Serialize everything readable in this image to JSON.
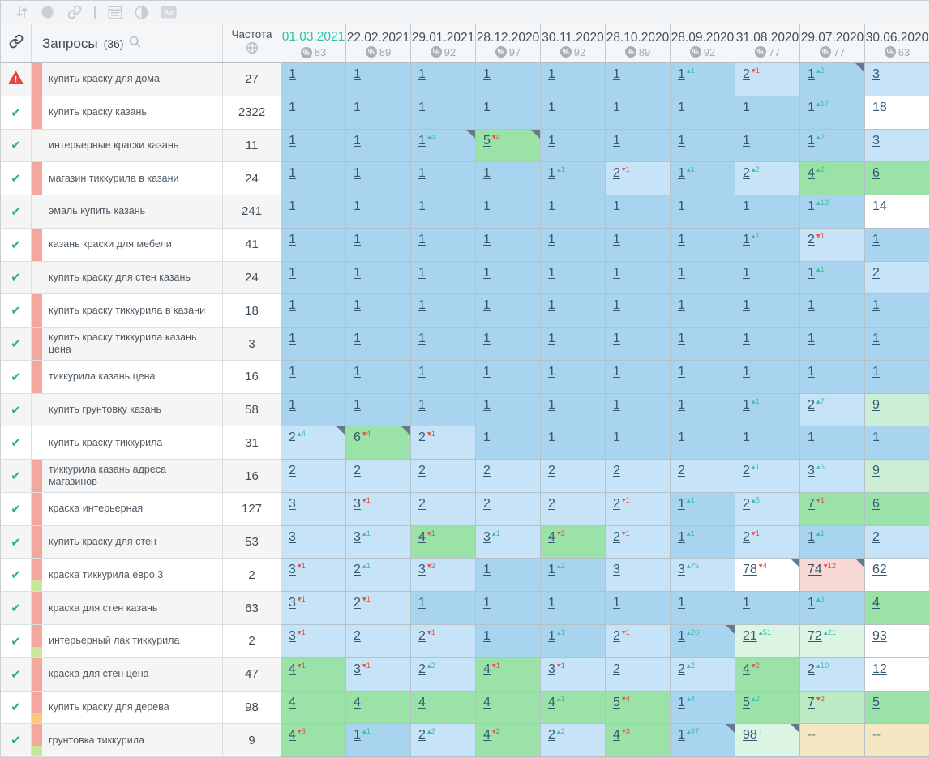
{
  "toolbar": {
    "icons": [
      "sort-icon",
      "group-circle-icon",
      "link-icon",
      "divider",
      "snippet-window-icon",
      "contrast-icon",
      "case-aa-icon"
    ]
  },
  "header": {
    "link_column_icon": "chain-link-icon",
    "queries_label": "Запросы",
    "queries_count": "(36)",
    "search_icon": "search-icon",
    "frequency_label": "Частота",
    "frequency_icon": "globe-icon"
  },
  "colors": {
    "accent_active_date": "#2dbfa7",
    "pos_top1_bg": "#a9d4ef",
    "pos_2_3_bg": "#c6e3f7",
    "pos_4_10_bg": "#9ae2a8",
    "improved_bg": "#dcf4e4",
    "dropped_bg": "#f9d9d6",
    "not_ranked_bg": "#f4e7c2",
    "up_change": "#3dbfa0",
    "down_change": "#e0544a"
  },
  "columns": [
    {
      "date": "01.03.2021",
      "percent": "83",
      "active": true
    },
    {
      "date": "22.02.2021",
      "percent": "89",
      "active": false
    },
    {
      "date": "29.01.2021",
      "percent": "92",
      "active": false
    },
    {
      "date": "28.12.2020",
      "percent": "97",
      "active": false
    },
    {
      "date": "30.11.2020",
      "percent": "92",
      "active": false
    },
    {
      "date": "28.10.2020",
      "percent": "89",
      "active": false
    },
    {
      "date": "28.09.2020",
      "percent": "92",
      "active": false
    },
    {
      "date": "31.08.2020",
      "percent": "77",
      "active": false
    },
    {
      "date": "29.07.2020",
      "percent": "77",
      "active": false
    },
    {
      "date": "30.06.2020",
      "percent": "63",
      "active": false
    }
  ],
  "rows": [
    {
      "status": "warning",
      "tags": [
        "salmon"
      ],
      "query": "купить краску для дома",
      "frequency": "27",
      "cells": [
        [
          "1",
          "b1"
        ],
        [
          "1",
          "b1"
        ],
        [
          "1",
          "b1"
        ],
        [
          "1",
          "b1"
        ],
        [
          "1",
          "b1"
        ],
        [
          "1",
          "b1"
        ],
        [
          "1",
          "b1",
          "u",
          "1"
        ],
        [
          "2",
          "b2",
          "d",
          "1"
        ],
        [
          "1",
          "b1",
          "u",
          "2",
          1
        ],
        [
          "3",
          "b2"
        ]
      ]
    },
    {
      "status": "ok",
      "tags": [
        "salmon"
      ],
      "query": "купить краску казань",
      "frequency": "2322",
      "cells": [
        [
          "1",
          "b1"
        ],
        [
          "1",
          "b1"
        ],
        [
          "1",
          "b1"
        ],
        [
          "1",
          "b1"
        ],
        [
          "1",
          "b1"
        ],
        [
          "1",
          "b1"
        ],
        [
          "1",
          "b1"
        ],
        [
          "1",
          "b1"
        ],
        [
          "1",
          "b1",
          "u",
          "17"
        ],
        [
          "18",
          "w"
        ]
      ]
    },
    {
      "status": "ok",
      "tags": [],
      "query": "интерьерные краски казань",
      "frequency": "11",
      "cells": [
        [
          "1",
          "b1"
        ],
        [
          "1",
          "b1"
        ],
        [
          "1",
          "b1",
          "u",
          "4",
          1
        ],
        [
          "5",
          "g4",
          "d",
          "4",
          1
        ],
        [
          "1",
          "b1"
        ],
        [
          "1",
          "b1"
        ],
        [
          "1",
          "b1"
        ],
        [
          "1",
          "b1"
        ],
        [
          "1",
          "b1",
          "u",
          "2"
        ],
        [
          "3",
          "b2"
        ]
      ]
    },
    {
      "status": "ok",
      "tags": [
        "salmon"
      ],
      "query": "магазин тиккурила в казани",
      "frequency": "24",
      "cells": [
        [
          "1",
          "b1"
        ],
        [
          "1",
          "b1"
        ],
        [
          "1",
          "b1"
        ],
        [
          "1",
          "b1"
        ],
        [
          "1",
          "b1",
          "u",
          "1"
        ],
        [
          "2",
          "b2",
          "d",
          "1"
        ],
        [
          "1",
          "b1",
          "u",
          "1"
        ],
        [
          "2",
          "b2",
          "u",
          "2"
        ],
        [
          "4",
          "g4",
          "u",
          "2"
        ],
        [
          "6",
          "g4"
        ]
      ]
    },
    {
      "status": "ok",
      "tags": [],
      "query": "эмаль купить казань",
      "frequency": "241",
      "cells": [
        [
          "1",
          "b1"
        ],
        [
          "1",
          "b1"
        ],
        [
          "1",
          "b1"
        ],
        [
          "1",
          "b1"
        ],
        [
          "1",
          "b1"
        ],
        [
          "1",
          "b1"
        ],
        [
          "1",
          "b1"
        ],
        [
          "1",
          "b1"
        ],
        [
          "1",
          "b1",
          "u",
          "13"
        ],
        [
          "14",
          "w"
        ]
      ]
    },
    {
      "status": "ok",
      "tags": [
        "salmon"
      ],
      "query": "казань краски для мебели",
      "frequency": "41",
      "cells": [
        [
          "1",
          "b1"
        ],
        [
          "1",
          "b1"
        ],
        [
          "1",
          "b1"
        ],
        [
          "1",
          "b1"
        ],
        [
          "1",
          "b1"
        ],
        [
          "1",
          "b1"
        ],
        [
          "1",
          "b1"
        ],
        [
          "1",
          "b1",
          "u",
          "1"
        ],
        [
          "2",
          "b2",
          "d",
          "1"
        ],
        [
          "1",
          "b1"
        ]
      ]
    },
    {
      "status": "ok",
      "tags": [],
      "query": "купить краску для стен казань",
      "frequency": "24",
      "cells": [
        [
          "1",
          "b1"
        ],
        [
          "1",
          "b1"
        ],
        [
          "1",
          "b1"
        ],
        [
          "1",
          "b1"
        ],
        [
          "1",
          "b1"
        ],
        [
          "1",
          "b1"
        ],
        [
          "1",
          "b1"
        ],
        [
          "1",
          "b1"
        ],
        [
          "1",
          "b1",
          "u",
          "1"
        ],
        [
          "2",
          "b2"
        ]
      ]
    },
    {
      "status": "ok",
      "tags": [
        "salmon"
      ],
      "query": "купить краску тиккурила в казани",
      "frequency": "18",
      "cells": [
        [
          "1",
          "b1"
        ],
        [
          "1",
          "b1"
        ],
        [
          "1",
          "b1"
        ],
        [
          "1",
          "b1"
        ],
        [
          "1",
          "b1"
        ],
        [
          "1",
          "b1"
        ],
        [
          "1",
          "b1"
        ],
        [
          "1",
          "b1"
        ],
        [
          "1",
          "b1"
        ],
        [
          "1",
          "b1"
        ]
      ]
    },
    {
      "status": "ok",
      "tags": [
        "salmon"
      ],
      "query": "купить краску тиккурила казань цена",
      "frequency": "3",
      "cells": [
        [
          "1",
          "b1"
        ],
        [
          "1",
          "b1"
        ],
        [
          "1",
          "b1"
        ],
        [
          "1",
          "b1"
        ],
        [
          "1",
          "b1"
        ],
        [
          "1",
          "b1"
        ],
        [
          "1",
          "b1"
        ],
        [
          "1",
          "b1"
        ],
        [
          "1",
          "b1"
        ],
        [
          "1",
          "b1"
        ]
      ]
    },
    {
      "status": "ok",
      "tags": [
        "salmon"
      ],
      "query": "тиккурила казань цена",
      "frequency": "16",
      "cells": [
        [
          "1",
          "b1"
        ],
        [
          "1",
          "b1"
        ],
        [
          "1",
          "b1"
        ],
        [
          "1",
          "b1"
        ],
        [
          "1",
          "b1"
        ],
        [
          "1",
          "b1"
        ],
        [
          "1",
          "b1"
        ],
        [
          "1",
          "b1"
        ],
        [
          "1",
          "b1"
        ],
        [
          "1",
          "b1"
        ]
      ]
    },
    {
      "status": "ok",
      "tags": [],
      "query": "купить грунтовку казань",
      "frequency": "58",
      "cells": [
        [
          "1",
          "b1"
        ],
        [
          "1",
          "b1"
        ],
        [
          "1",
          "b1"
        ],
        [
          "1",
          "b1"
        ],
        [
          "1",
          "b1"
        ],
        [
          "1",
          "b1"
        ],
        [
          "1",
          "b1"
        ],
        [
          "1",
          "b1",
          "u",
          "1"
        ],
        [
          "2",
          "b2",
          "u",
          "7"
        ],
        [
          "9",
          "g9"
        ]
      ]
    },
    {
      "status": "ok",
      "tags": [],
      "query": "купить краску тиккурила",
      "frequency": "31",
      "cells": [
        [
          "2",
          "b2",
          "u",
          "4",
          1
        ],
        [
          "6",
          "g4",
          "d",
          "4",
          1
        ],
        [
          "2",
          "b2",
          "d",
          "1"
        ],
        [
          "1",
          "b1"
        ],
        [
          "1",
          "b1"
        ],
        [
          "1",
          "b1"
        ],
        [
          "1",
          "b1"
        ],
        [
          "1",
          "b1"
        ],
        [
          "1",
          "b1"
        ],
        [
          "1",
          "b1"
        ]
      ]
    },
    {
      "status": "ok",
      "tags": [
        "salmon"
      ],
      "query": "тиккурила казань адреса магазинов",
      "frequency": "16",
      "cells": [
        [
          "2",
          "b2"
        ],
        [
          "2",
          "b2"
        ],
        [
          "2",
          "b2"
        ],
        [
          "2",
          "b2"
        ],
        [
          "2",
          "b2"
        ],
        [
          "2",
          "b2"
        ],
        [
          "2",
          "b2"
        ],
        [
          "2",
          "b2",
          "u",
          "1"
        ],
        [
          "3",
          "b2",
          "u",
          "6"
        ],
        [
          "9",
          "g9"
        ]
      ]
    },
    {
      "status": "ok",
      "tags": [
        "salmon"
      ],
      "query": "краска интерьерная",
      "frequency": "127",
      "cells": [
        [
          "3",
          "b2"
        ],
        [
          "3",
          "b2",
          "d",
          "1"
        ],
        [
          "2",
          "b2"
        ],
        [
          "2",
          "b2"
        ],
        [
          "2",
          "b2"
        ],
        [
          "2",
          "b2",
          "d",
          "1"
        ],
        [
          "1",
          "b1",
          "u",
          "1"
        ],
        [
          "2",
          "b2",
          "u",
          "5"
        ],
        [
          "7",
          "g4",
          "d",
          "1"
        ],
        [
          "6",
          "g4"
        ]
      ]
    },
    {
      "status": "ok",
      "tags": [
        "salmon"
      ],
      "query": "купить краску для стен",
      "frequency": "53",
      "cells": [
        [
          "3",
          "b2"
        ],
        [
          "3",
          "b2",
          "u",
          "1"
        ],
        [
          "4",
          "g4",
          "d",
          "1"
        ],
        [
          "3",
          "b2",
          "u",
          "1"
        ],
        [
          "4",
          "g4",
          "d",
          "2"
        ],
        [
          "2",
          "b2",
          "d",
          "1"
        ],
        [
          "1",
          "b1",
          "u",
          "1"
        ],
        [
          "2",
          "b2",
          "d",
          "1"
        ],
        [
          "1",
          "b1",
          "u",
          "1"
        ],
        [
          "2",
          "b2"
        ]
      ]
    },
    {
      "status": "ok",
      "tags": [
        "salmon",
        "green"
      ],
      "query": "краска тиккурила евро 3",
      "frequency": "2",
      "cells": [
        [
          "3",
          "b2",
          "d",
          "1"
        ],
        [
          "2",
          "b2",
          "u",
          "1"
        ],
        [
          "3",
          "b2",
          "d",
          "2"
        ],
        [
          "1",
          "b1"
        ],
        [
          "1",
          "b1",
          "u",
          "2"
        ],
        [
          "3",
          "b2"
        ],
        [
          "3",
          "b2",
          "u",
          "75"
        ],
        [
          "78",
          "w",
          "d",
          "4",
          1
        ],
        [
          "74",
          "pink",
          "d",
          "12",
          1
        ],
        [
          "62",
          "w"
        ]
      ]
    },
    {
      "status": "ok",
      "tags": [
        "salmon"
      ],
      "query": "краска для стен казань",
      "frequency": "63",
      "cells": [
        [
          "3",
          "b2",
          "d",
          "1"
        ],
        [
          "2",
          "b2",
          "d",
          "1"
        ],
        [
          "1",
          "b1"
        ],
        [
          "1",
          "b1"
        ],
        [
          "1",
          "b1"
        ],
        [
          "1",
          "b1"
        ],
        [
          "1",
          "b1"
        ],
        [
          "1",
          "b1"
        ],
        [
          "1",
          "b1",
          "u",
          "3"
        ],
        [
          "4",
          "g4"
        ]
      ]
    },
    {
      "status": "ok",
      "tags": [
        "salmon",
        "green"
      ],
      "query": "интерьерный лак тиккурила",
      "frequency": "2",
      "cells": [
        [
          "3",
          "b2",
          "d",
          "1"
        ],
        [
          "2",
          "b2"
        ],
        [
          "2",
          "b2",
          "d",
          "1"
        ],
        [
          "1",
          "b1"
        ],
        [
          "1",
          "b1",
          "u",
          "1"
        ],
        [
          "2",
          "b2",
          "d",
          "1"
        ],
        [
          "1",
          "b1",
          "u",
          "20",
          1
        ],
        [
          "21",
          "mint",
          "u",
          "51"
        ],
        [
          "72",
          "mint",
          "u",
          "21"
        ],
        [
          "93",
          "w"
        ]
      ]
    },
    {
      "status": "ok",
      "tags": [
        "salmon"
      ],
      "query": "краска для стен цена",
      "frequency": "47",
      "cells": [
        [
          "4",
          "g4",
          "d",
          "1"
        ],
        [
          "3",
          "b2",
          "d",
          "1"
        ],
        [
          "2",
          "b2",
          "u",
          "2"
        ],
        [
          "4",
          "g4",
          "d",
          "1"
        ],
        [
          "3",
          "b2",
          "d",
          "1"
        ],
        [
          "2",
          "b2"
        ],
        [
          "2",
          "b2",
          "u",
          "2"
        ],
        [
          "4",
          "g4",
          "d",
          "2"
        ],
        [
          "2",
          "b2",
          "u",
          "10"
        ],
        [
          "12",
          "w"
        ]
      ]
    },
    {
      "status": "ok",
      "tags": [
        "salmon",
        "orange"
      ],
      "query": "купить краску для дерева",
      "frequency": "98",
      "cells": [
        [
          "4",
          "g4"
        ],
        [
          "4",
          "g4"
        ],
        [
          "4",
          "g4"
        ],
        [
          "4",
          "g4"
        ],
        [
          "4",
          "g4",
          "u",
          "1"
        ],
        [
          "5",
          "g4",
          "d",
          "4"
        ],
        [
          "1",
          "b1",
          "u",
          "4"
        ],
        [
          "5",
          "g4",
          "u",
          "2"
        ],
        [
          "7",
          "g7",
          "d",
          "2"
        ],
        [
          "5",
          "g4"
        ]
      ]
    },
    {
      "status": "ok",
      "tags": [
        "salmon",
        "green"
      ],
      "query": "грунтовка тиккурила",
      "frequency": "9",
      "cells": [
        [
          "4",
          "g4",
          "d",
          "3"
        ],
        [
          "1",
          "b1",
          "u",
          "1"
        ],
        [
          "2",
          "b2",
          "u",
          "2"
        ],
        [
          "4",
          "g4",
          "d",
          "2"
        ],
        [
          "2",
          "b2",
          "u",
          "2"
        ],
        [
          "4",
          "g4",
          "d",
          "3"
        ],
        [
          "1",
          "b1",
          "u",
          "97",
          1
        ],
        [
          "98",
          "mint",
          "u",
          "^",
          1
        ],
        [
          "--",
          "na"
        ],
        [
          "--",
          "na"
        ]
      ]
    }
  ]
}
